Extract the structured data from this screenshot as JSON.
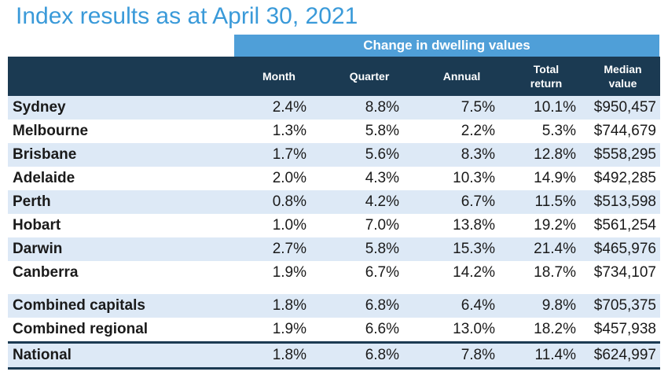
{
  "title": "Index results as at April 30, 2021",
  "band_label": "Change in dwelling values",
  "columns": {
    "month": "Month",
    "quarter": "Quarter",
    "annual": "Annual",
    "total_return_1": "Total",
    "total_return_2": "return",
    "median_1": "Median",
    "median_2": "value"
  },
  "rows": [
    {
      "name": "Sydney",
      "month": "2.4%",
      "quarter": "8.8%",
      "annual": "7.5%",
      "total": "10.1%",
      "median": "$950,457"
    },
    {
      "name": "Melbourne",
      "month": "1.3%",
      "quarter": "5.8%",
      "annual": "2.2%",
      "total": "5.3%",
      "median": "$744,679"
    },
    {
      "name": "Brisbane",
      "month": "1.7%",
      "quarter": "5.6%",
      "annual": "8.3%",
      "total": "12.8%",
      "median": "$558,295"
    },
    {
      "name": "Adelaide",
      "month": "2.0%",
      "quarter": "4.3%",
      "annual": "10.3%",
      "total": "14.9%",
      "median": "$492,285"
    },
    {
      "name": "Perth",
      "month": "0.8%",
      "quarter": "4.2%",
      "annual": "6.7%",
      "total": "11.5%",
      "median": "$513,598"
    },
    {
      "name": "Hobart",
      "month": "1.0%",
      "quarter": "7.0%",
      "annual": "13.8%",
      "total": "19.2%",
      "median": "$561,254"
    },
    {
      "name": "Darwin",
      "month": "2.7%",
      "quarter": "5.8%",
      "annual": "15.3%",
      "total": "21.4%",
      "median": "$465,976"
    },
    {
      "name": "Canberra",
      "month": "1.9%",
      "quarter": "6.7%",
      "annual": "14.2%",
      "total": "18.7%",
      "median": "$734,107"
    },
    {
      "name": "Combined capitals",
      "month": "1.8%",
      "quarter": "6.8%",
      "annual": "6.4%",
      "total": "9.8%",
      "median": "$705,375"
    },
    {
      "name": "Combined regional",
      "month": "1.9%",
      "quarter": "6.6%",
      "annual": "13.0%",
      "total": "18.2%",
      "median": "$457,938"
    },
    {
      "name": "National",
      "month": "1.8%",
      "quarter": "6.8%",
      "annual": "7.8%",
      "total": "11.4%",
      "median": "$624,997"
    }
  ]
}
